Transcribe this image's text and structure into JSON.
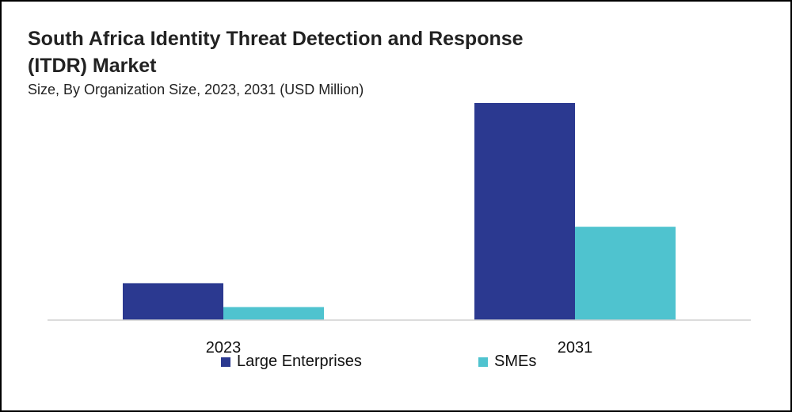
{
  "chart_data": {
    "type": "bar",
    "title_line1": "South Africa Identity Threat Detection and Response",
    "title_line2": "(ITDR) Market",
    "subtitle": "Size, By Organization Size, 2023, 2031 (USD Million)",
    "categories": [
      "2023",
      "2031"
    ],
    "series": [
      {
        "name": "Large Enterprises",
        "color": "#2b3990",
        "values": [
          17,
          100
        ]
      },
      {
        "name": "SMEs",
        "color": "#4fc3cf",
        "values": [
          6,
          43
        ]
      }
    ],
    "ylim": [
      0,
      100
    ],
    "xlabel": "",
    "ylabel": "",
    "legend_position": "bottom",
    "grid": false
  }
}
